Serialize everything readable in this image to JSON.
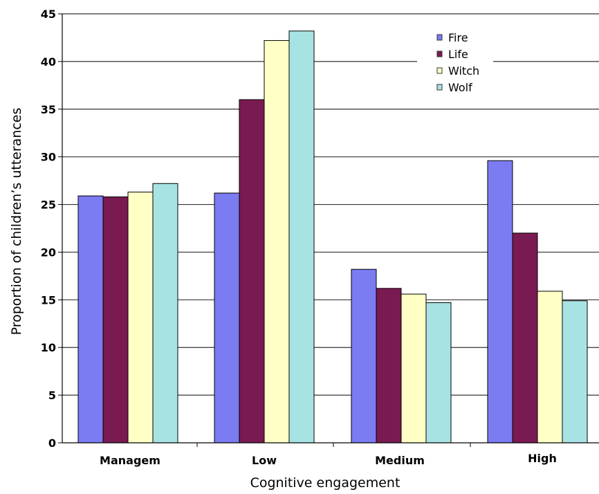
{
  "chart_data": {
    "type": "bar",
    "categories": [
      "Managem",
      "Low",
      "Medium",
      "High"
    ],
    "series": [
      {
        "name": "Fire",
        "values": [
          25.9,
          26.2,
          18.2,
          29.6
        ]
      },
      {
        "name": "Life",
        "values": [
          25.8,
          36.0,
          16.2,
          22.0
        ]
      },
      {
        "name": "Witch",
        "values": [
          26.3,
          42.2,
          15.6,
          15.9
        ]
      },
      {
        "name": "Wolf",
        "values": [
          27.2,
          43.2,
          14.7,
          14.9
        ]
      }
    ],
    "xlabel": "Cognitive engagement",
    "ylabel": "Proportion of children’s utterances",
    "ylim": [
      0,
      45
    ],
    "yticks": [
      0,
      5,
      10,
      15,
      20,
      25,
      30,
      35,
      40,
      45
    ],
    "grid": true,
    "legend_position": "top-right",
    "colors": {
      "Fire": "#7b7bf2",
      "Life": "#7a1a52",
      "Witch": "#ffffc6",
      "Wolf": "#a8e3e3",
      "grid": "#333333"
    }
  }
}
